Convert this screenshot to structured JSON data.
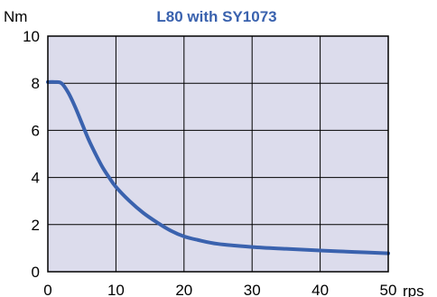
{
  "chart_data": {
    "type": "line",
    "title": "L80 with SY1073",
    "xlabel": "rps",
    "ylabel": "Nm",
    "xlim": [
      0,
      50
    ],
    "ylim": [
      0,
      10
    ],
    "x_ticks": [
      0,
      10,
      20,
      30,
      40,
      50
    ],
    "y_ticks": [
      0,
      2,
      4,
      6,
      8,
      10
    ],
    "x_tick_labels": [
      "0",
      "10",
      "20",
      "30",
      "40",
      "50"
    ],
    "y_tick_labels": [
      "0",
      "2",
      "4",
      "6",
      "8",
      "10"
    ],
    "grid": true,
    "colors": {
      "plot_background": "#dcdcec",
      "grid": "#000000",
      "series": "#3a62ae",
      "title": "#3a62ae"
    },
    "series": [
      {
        "x": [
          0,
          1,
          2,
          3,
          4,
          5,
          6,
          7,
          8,
          9,
          10,
          12,
          14,
          16,
          18,
          20,
          22,
          25,
          30,
          35,
          40,
          45,
          50
        ],
        "y": [
          8.05,
          8.05,
          8.0,
          7.6,
          7.0,
          6.3,
          5.6,
          5.0,
          4.45,
          4.0,
          3.6,
          3.0,
          2.5,
          2.1,
          1.75,
          1.5,
          1.35,
          1.18,
          1.05,
          0.97,
          0.9,
          0.84,
          0.78
        ]
      }
    ]
  }
}
